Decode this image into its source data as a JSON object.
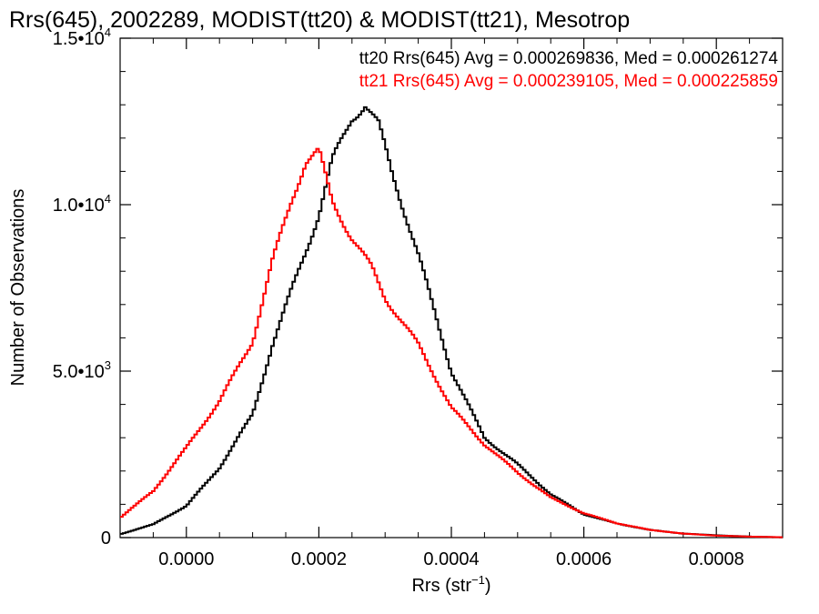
{
  "chart_data": {
    "type": "line",
    "title": "Rrs(645), 2002289, MODIST(tt20) & MODIST(tt21), Mesotrop",
    "xlabel": "Rrs (str",
    "xlabel_sup": "−1",
    "xlabel_end": ")",
    "ylabel": "Number of Observations",
    "xlim": [
      -0.0001,
      0.0009
    ],
    "ylim": [
      0,
      15000
    ],
    "x_ticks": [
      0.0,
      0.0002,
      0.0004,
      0.0006,
      0.0008
    ],
    "x_tick_labels": [
      "0.0000",
      "0.0002",
      "0.0004",
      "0.0006",
      "0.0008"
    ],
    "y_ticks": [
      {
        "value": 0,
        "mantissa": "0",
        "exp": ""
      },
      {
        "value": 5000,
        "mantissa": "5.0•10",
        "exp": "3"
      },
      {
        "value": 10000,
        "mantissa": "1.0•10",
        "exp": "4"
      },
      {
        "value": 15000,
        "mantissa": "1.5•10",
        "exp": "4"
      }
    ],
    "grid": false,
    "legend_position": "top-right",
    "series": [
      {
        "name": "tt20",
        "color": "#000000",
        "annotation": "tt20 Rrs(645) Avg = 0.000269836, Med = 0.000261274",
        "x": [
          -0.0001,
          -5e-05,
          0.0,
          5e-05,
          0.0001,
          0.00013,
          0.00016,
          0.0002,
          0.00022,
          0.00025,
          0.00027,
          0.00029,
          0.00031,
          0.00035,
          0.0004,
          0.00045,
          0.0005,
          0.00055,
          0.0006,
          0.00065,
          0.0007,
          0.00075,
          0.0008,
          0.00085,
          0.0009
        ],
        "y": [
          100,
          400,
          950,
          2100,
          3700,
          5800,
          7500,
          9700,
          11300,
          12600,
          13000,
          12400,
          11000,
          8500,
          5000,
          3000,
          2200,
          1300,
          700,
          420,
          230,
          120,
          70,
          30,
          10
        ]
      },
      {
        "name": "tt21",
        "color": "#ff0000",
        "annotation": "tt21 Rrs(645) Avg = 0.000239105, Med = 0.000225859",
        "x": [
          -0.0001,
          -5e-05,
          0.0,
          5e-05,
          0.0001,
          0.00013,
          0.00016,
          0.00018,
          0.0002,
          0.00022,
          0.00025,
          0.00028,
          0.0003,
          0.00035,
          0.0004,
          0.00045,
          0.0005,
          0.00055,
          0.0006,
          0.00065,
          0.0007,
          0.00075,
          0.0008,
          0.00085,
          0.0009
        ],
        "y": [
          600,
          1400,
          2700,
          4100,
          5900,
          8300,
          10200,
          11300,
          11600,
          10100,
          9000,
          8100,
          7200,
          5800,
          3900,
          2800,
          1950,
          1200,
          730,
          430,
          230,
          120,
          60,
          30,
          10
        ]
      }
    ]
  }
}
